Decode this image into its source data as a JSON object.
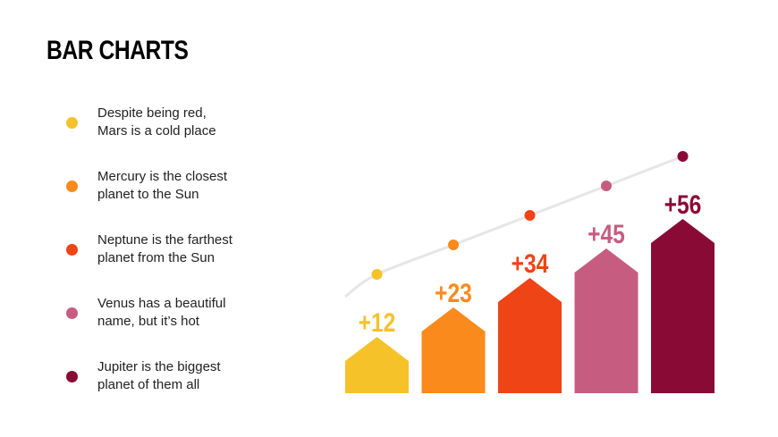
{
  "title": "BAR CHARTS",
  "legend": [
    {
      "text": "Despite being red,\nMars is a cold place",
      "color": "#f5c22a"
    },
    {
      "text": "Mercury is the closest\nplanet to the Sun",
      "color": "#f98a1b"
    },
    {
      "text": "Neptune is the farthest\nplanet from the Sun",
      "color": "#ee4416"
    },
    {
      "text": "Venus has a beautiful\nname, but it’s hot",
      "color": "#c65d80"
    },
    {
      "text": "Jupiter is the biggest\nplanet of them all",
      "color": "#8a0a36"
    }
  ],
  "chart_data": {
    "type": "bar",
    "values": [
      12,
      23,
      34,
      45,
      56
    ],
    "labels": [
      "+12",
      "+23",
      "+34",
      "+45",
      "+56"
    ],
    "colors": [
      "#f5c22a",
      "#f98a1b",
      "#ee4416",
      "#c65d80",
      "#8a0a36"
    ],
    "trend_line": true
  }
}
